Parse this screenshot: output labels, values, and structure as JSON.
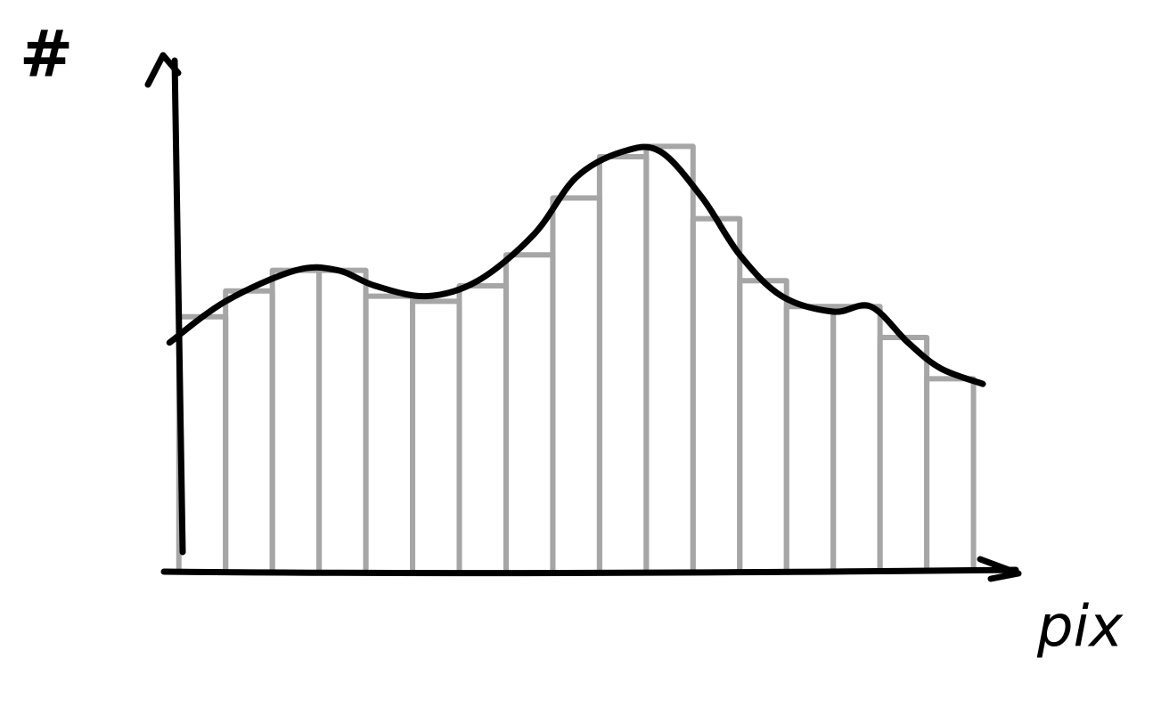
{
  "chart_data": {
    "type": "histogram",
    "xlabel": "pix",
    "ylabel": "#",
    "bins": [
      0,
      1,
      2,
      3,
      4,
      5,
      6,
      7,
      8,
      9,
      10,
      11,
      12,
      13,
      14,
      15,
      16,
      17
    ],
    "values": [
      49,
      54,
      58,
      58,
      53,
      52,
      55,
      61,
      72,
      80,
      82,
      68,
      56,
      51,
      51,
      45,
      37
    ],
    "color": "#a6a6a6",
    "curve": {
      "color": "#000000",
      "x": [
        -0.2,
        1,
        2.5,
        3.4,
        4.2,
        5.3,
        6.4,
        7.6,
        8.5,
        9.5,
        10.3,
        11.2,
        12,
        12.9,
        14,
        14.8,
        15.6,
        16.3,
        17.2
      ],
      "values": [
        44,
        52,
        58,
        58,
        55,
        53,
        56,
        65,
        76,
        81,
        81,
        72,
        61,
        53,
        50,
        51,
        44,
        39,
        36
      ]
    },
    "xlim": [
      -0.3,
      18
    ],
    "ylim": [
      0,
      100
    ]
  }
}
